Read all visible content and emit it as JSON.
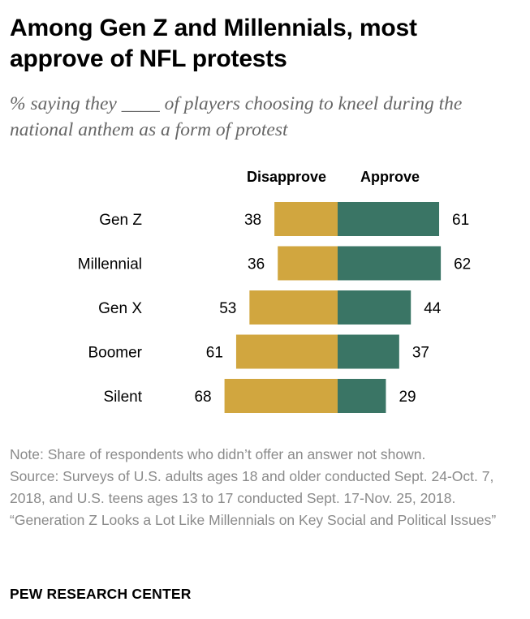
{
  "title": "Among Gen Z and Millennials, most approve of NFL protests",
  "subtitle": "% saying they ____ of players choosing to kneel during the national anthem as a form of protest",
  "chart_data": {
    "type": "bar",
    "orientation": "horizontal-diverging",
    "categories": [
      "Gen Z",
      "Millennial",
      "Gen X",
      "Boomer",
      "Silent"
    ],
    "series": [
      {
        "name": "Disapprove",
        "values": [
          38,
          36,
          53,
          61,
          68
        ],
        "color": "#d1a63f",
        "direction": "left"
      },
      {
        "name": "Approve",
        "values": [
          61,
          62,
          44,
          37,
          29
        ],
        "color": "#3a7565",
        "direction": "right"
      }
    ],
    "xlabel": "",
    "ylabel": "",
    "grid": false
  },
  "notes": {
    "note": "Note: Share of respondents who didn’t offer an answer not shown.",
    "source": "Source: Surveys of U.S. adults ages 18 and older conducted Sept. 24-Oct. 7, 2018, and U.S. teens ages 13 to 17 conducted Sept. 17-Nov. 25, 2018.",
    "report": "“Generation Z Looks a Lot Like Millennials on Key Social and Political Issues”"
  },
  "brand": "PEW RESEARCH CENTER",
  "colors": {
    "disapprove": "#d1a63f",
    "approve": "#3a7565",
    "title": "#000000",
    "subtitle": "#666666",
    "notes": "#8a8a8a"
  }
}
